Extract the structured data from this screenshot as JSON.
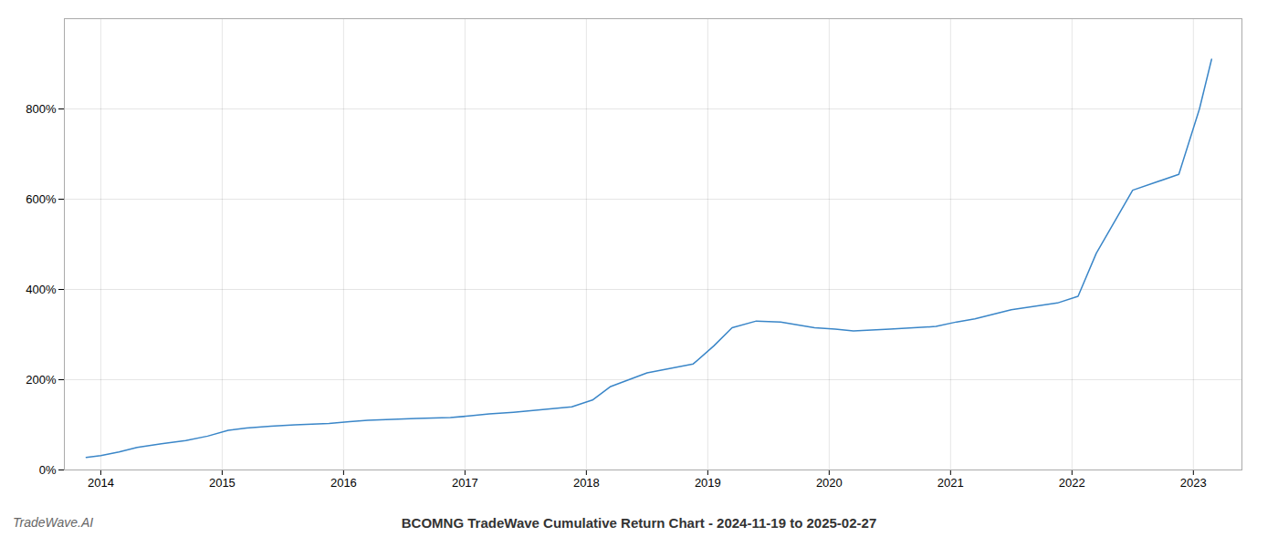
{
  "chart_data": {
    "type": "line",
    "title": "BCOMNG TradeWave Cumulative Return Chart - 2024-11-19 to 2025-02-27",
    "annotations": [
      "TradeWave.AI"
    ],
    "color": "#3a86c8",
    "grid": true,
    "x": [
      2013.88,
      2014.0,
      2014.15,
      2014.3,
      2014.5,
      2014.7,
      2014.88,
      2015.05,
      2015.2,
      2015.4,
      2015.6,
      2015.88,
      2016.05,
      2016.2,
      2016.4,
      2016.6,
      2016.88,
      2017.05,
      2017.2,
      2017.4,
      2017.6,
      2017.88,
      2018.05,
      2018.2,
      2018.5,
      2018.88,
      2019.05,
      2019.2,
      2019.4,
      2019.6,
      2019.88,
      2020.05,
      2020.2,
      2020.5,
      2020.88,
      2021.05,
      2021.2,
      2021.5,
      2021.88,
      2022.05,
      2022.2,
      2022.5,
      2022.88,
      2023.05,
      2023.15
    ],
    "values": [
      28,
      32,
      40,
      50,
      58,
      65,
      75,
      88,
      93,
      97,
      100,
      103,
      107,
      110,
      112,
      114,
      116,
      120,
      124,
      128,
      133,
      140,
      155,
      185,
      215,
      235,
      275,
      315,
      330,
      328,
      315,
      312,
      308,
      312,
      318,
      328,
      335,
      355,
      370,
      385,
      480,
      620,
      655,
      800,
      910
    ],
    "xlim": [
      2013.7,
      2023.4
    ],
    "ylim": [
      0,
      1000
    ],
    "xticks": [
      2014,
      2015,
      2016,
      2017,
      2018,
      2019,
      2020,
      2021,
      2022,
      2023
    ],
    "yticks": [
      {
        "value": 0,
        "label": "0%"
      },
      {
        "value": 200,
        "label": "200%"
      },
      {
        "value": 400,
        "label": "400%"
      },
      {
        "value": 600,
        "label": "600%"
      },
      {
        "value": 800,
        "label": "800%"
      }
    ]
  }
}
